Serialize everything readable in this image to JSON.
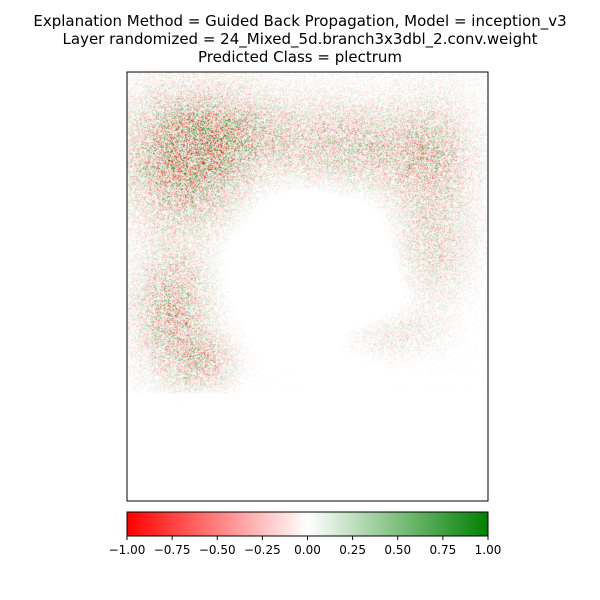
{
  "chart_data": {
    "type": "heatmap",
    "title": [
      "Explanation Method = Guided Back Propagation, Model = inception_v3",
      "Layer randomized = 24_Mixed_5d.branch3x3dbl_2.conv.weight",
      "Predicted Class = plectrum"
    ],
    "xlabel": "",
    "ylabel": "",
    "axis_ticks_visible": false,
    "grid": false,
    "colorbar": {
      "orientation": "horizontal",
      "placement": "bottom",
      "vmin": -1.0,
      "vmax": 1.0,
      "ticks": [
        -1.0,
        -0.75,
        -0.5,
        -0.25,
        0.0,
        0.25,
        0.5,
        0.75,
        1.0
      ],
      "tick_labels": [
        "−1.00",
        "−0.75",
        "−0.50",
        "−0.25",
        "0.00",
        "0.25",
        "0.50",
        "0.75",
        "1.00"
      ],
      "colors": [
        "#ff0000",
        "#ffffff",
        "#008000"
      ]
    }
  }
}
